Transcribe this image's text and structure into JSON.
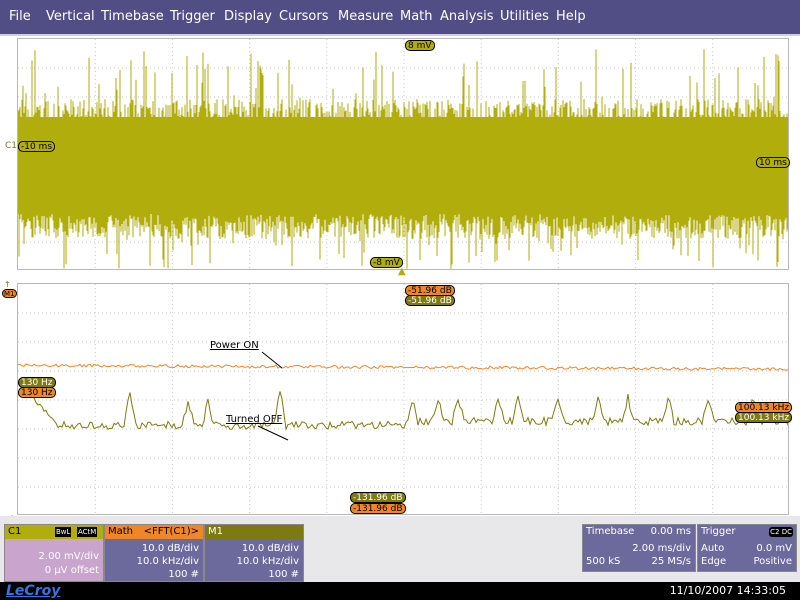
{
  "menu": [
    "File",
    "Vertical",
    "Timebase",
    "Trigger",
    "Display",
    "Cursors",
    "Measure",
    "Math",
    "Analysis",
    "Utilities",
    "Help"
  ],
  "colors": {
    "menu_bg": "#514e86",
    "trace_yellow": "#b0ad0c",
    "trace_orange": "#f0862a",
    "trace_olive": "#7e7a12",
    "panel_purple": "#6c6a9c"
  },
  "top_plot": {
    "channel_label": "C1",
    "top_level": "8 mV",
    "bottom_level": "-8 mV",
    "left_time": "-10 ms",
    "right_time": "10 ms"
  },
  "bottom_plot": {
    "marker_label": "M1",
    "top_math": "-51.96 dB",
    "top_m1": "-51.96 dB",
    "bottom_math": "-131.96 dB",
    "bottom_m1": "-131.96 dB",
    "left_freq_math": "130 Hz",
    "left_freq_m1": "130 Hz",
    "right_freq_math": "100.13 kHz",
    "right_freq_m1": "100.13 kHz",
    "annotation_on": "Power ON",
    "annotation_off": "Turned OFF"
  },
  "chart_data": {
    "type": "line",
    "series": [
      {
        "name": "Power ON",
        "level_db": -80,
        "noise": 1
      },
      {
        "name": "Turned OFF",
        "level_db": -100,
        "noise": 2
      }
    ],
    "ylim": [
      -131.96,
      -51.96
    ],
    "xlim_khz": [
      0.13,
      100.13
    ]
  },
  "channels": {
    "c1": {
      "title": "C1",
      "badge1": "BwL",
      "badge2": "ACtM",
      "line1": "2.00 mV/div",
      "line2": "0 µV offset"
    },
    "math": {
      "title": "Math",
      "func": "<FFT(C1)>",
      "line1": "10.0 dB/div",
      "line2": "10.0 kHz/div",
      "line3": "100 #"
    },
    "m1": {
      "title": "M1",
      "line1": "10.0 dB/div",
      "line2": "10.0 kHz/div",
      "line3": "100 #"
    }
  },
  "timebase": {
    "title": "Timebase",
    "delay": "0.00 ms",
    "per_div": "2.00 ms/div",
    "samples": "500 kS",
    "rate": "25 MS/s"
  },
  "trigger": {
    "title": "Trigger",
    "badge": "C2 DC",
    "mode": "Auto",
    "level": "0.0 mV",
    "type": "Edge",
    "slope": "Positive"
  },
  "status": {
    "logo": "LeCroy",
    "datetime": "11/10/2007 14:33:05"
  }
}
